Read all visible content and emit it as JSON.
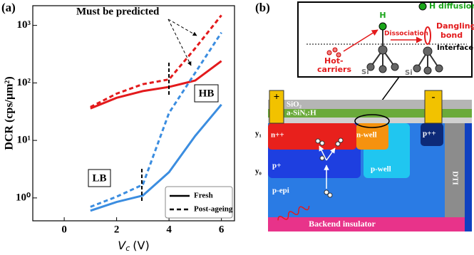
{
  "panel_labels": [
    "(a)",
    "(b)"
  ],
  "chart_data": {
    "type": "line",
    "ylabel": "DCR (cps/µm²)",
    "xlabel": {
      "symbol": "V",
      "subscript": "c",
      "unit": "(V)"
    },
    "x": [
      1,
      2,
      3,
      4,
      5,
      6
    ],
    "series": [
      {
        "color": "#e31a1c",
        "dash": "solid",
        "values": [
          36,
          55,
          72,
          85,
          110,
          240
        ]
      },
      {
        "color": "#e31a1c",
        "dash": "dashed",
        "values": [
          38,
          65,
          95,
          115,
          400,
          1500
        ]
      },
      {
        "color": "#3b8de0",
        "dash": "solid",
        "values": [
          0.6,
          0.85,
          1.1,
          2.8,
          12,
          42
        ]
      },
      {
        "color": "#3b8de0",
        "dash": "dashed",
        "values": [
          0.7,
          1.05,
          1.7,
          30,
          150,
          750
        ]
      }
    ],
    "legend": [
      {
        "name": "Fresh",
        "dash": "solid"
      },
      {
        "name": "Post-ageing",
        "dash": "dashed"
      }
    ],
    "xlim": [
      -1.2,
      6.5
    ],
    "xticks": [
      0,
      2,
      4,
      6
    ],
    "ylim": [
      0.4,
      2200
    ],
    "log_y": true,
    "yticks": [
      {
        "value": 1,
        "label": "10⁰"
      },
      {
        "value": 10,
        "label": "10¹"
      },
      {
        "value": 100,
        "label": "10²"
      },
      {
        "value": 1000,
        "label": "10³"
      }
    ],
    "annotations": [
      "Must be predicted",
      "HB",
      "LB"
    ]
  },
  "diagram": {
    "inset": {
      "h_atom": "H",
      "h_diffusion": "H diffusion",
      "dissociation": "Dissociation",
      "dangling_bond": [
        "Dangling",
        "bond"
      ],
      "interface": "Interface",
      "hot_carriers": [
        "Hot-",
        "carriers"
      ],
      "si": [
        "Si",
        "Si"
      ]
    },
    "layers": {
      "contact_plus": "+",
      "contact_minus": "-",
      "sio2": "SiO₂",
      "sinx": "a-SiNₓ:H",
      "n_pp": "n++",
      "n_well": "n-well",
      "p_pp": "p++",
      "p_plus": "p+",
      "p_well": "p-well",
      "p_epi": "p-epi",
      "dti": "DTI",
      "backend": "Backend insulator",
      "y1": "y₁",
      "y0": "y₀"
    }
  }
}
